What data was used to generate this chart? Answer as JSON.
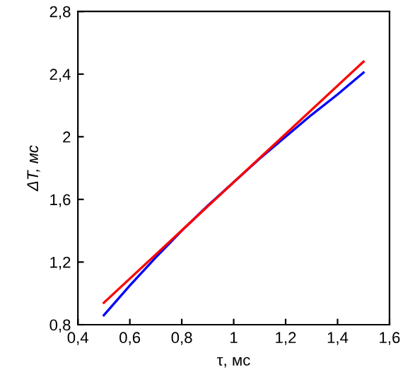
{
  "chart_data": {
    "type": "line",
    "xlabel": "τ, мс",
    "ylabel": "ΔT, мс",
    "xlim": [
      0.4,
      1.6
    ],
    "xticks": [
      {
        "value": 0.4,
        "label": "0,4"
      },
      {
        "value": 0.6,
        "label": "0,6"
      },
      {
        "value": 0.8,
        "label": "0,8"
      },
      {
        "value": 1.0,
        "label": "1"
      },
      {
        "value": 1.2,
        "label": "1,2"
      },
      {
        "value": 1.4,
        "label": "1,4"
      },
      {
        "value": 1.6,
        "label": "1,6"
      }
    ],
    "ylim": [
      0.8,
      2.8
    ],
    "yticks": [
      {
        "value": 0.8,
        "label": "0,8"
      },
      {
        "value": 1.2,
        "label": "1,2"
      },
      {
        "value": 1.6,
        "label": "1,6"
      },
      {
        "value": 2.0,
        "label": "2"
      },
      {
        "value": 2.4,
        "label": "2,4"
      },
      {
        "value": 2.8,
        "label": "2,8"
      }
    ],
    "grid": false,
    "series": [
      {
        "color": "#ff0000",
        "x": [
          0.5,
          1.0,
          1.5
        ],
        "values": [
          0.94,
          1.71,
          2.48
        ]
      },
      {
        "color": "#0000ff",
        "x": [
          0.5,
          0.6,
          0.7,
          0.8,
          0.9,
          1.0,
          1.1,
          1.2,
          1.3,
          1.4,
          1.5
        ],
        "values": [
          0.86,
          1.05,
          1.23,
          1.4,
          1.56,
          1.71,
          1.86,
          2.0,
          2.14,
          2.27,
          2.41
        ]
      }
    ]
  }
}
